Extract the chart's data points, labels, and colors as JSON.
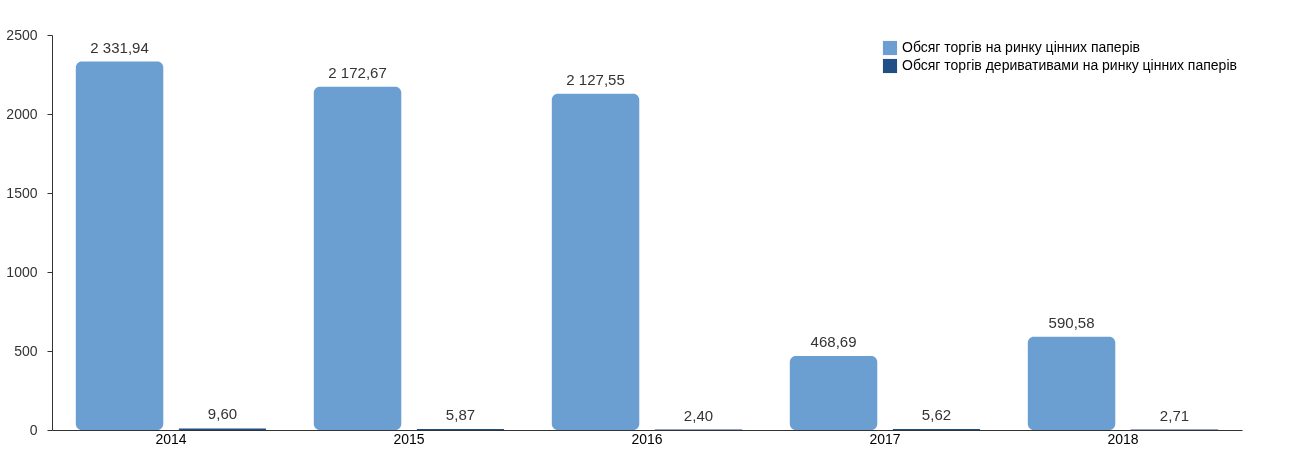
{
  "chart_data": {
    "type": "bar",
    "categories": [
      "2014",
      "2015",
      "2016",
      "2017",
      "2018"
    ],
    "series": [
      {
        "name": "Обсяг торгів на ринку цінних паперів",
        "color": "#6b9fd1",
        "values": [
          2331.94,
          2172.67,
          2127.55,
          468.69,
          590.58
        ],
        "value_labels": [
          "2 331,94",
          "2 172,67",
          "2 127,55",
          "468,69",
          "590,58"
        ]
      },
      {
        "name": "Обсяг торгів деривативами на ринку цінних паперів",
        "color": "#1f4f85",
        "values": [
          9.6,
          5.87,
          2.4,
          5.62,
          2.71
        ],
        "value_labels": [
          "9,60",
          "5,87",
          "2,40",
          "5,62",
          "2,71"
        ]
      }
    ],
    "ylim": [
      0,
      2500
    ],
    "yticks": [
      0,
      500,
      1000,
      1500,
      2000,
      2500
    ],
    "grid": false,
    "legend": "top right"
  }
}
